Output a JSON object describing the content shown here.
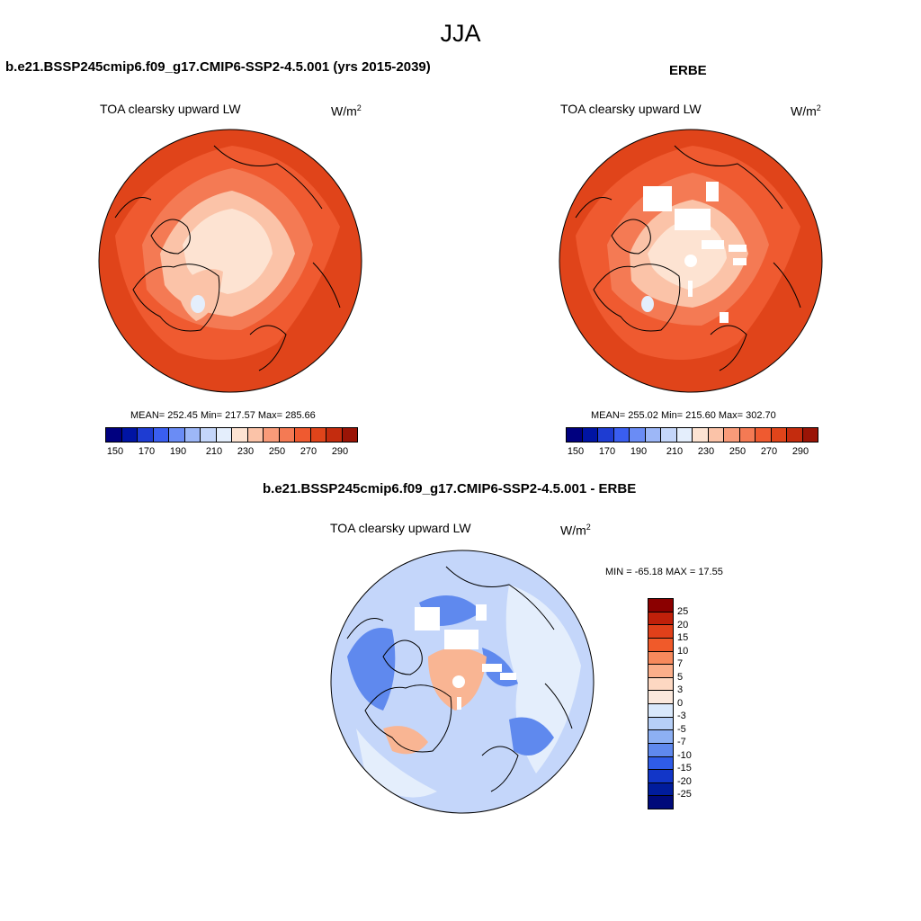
{
  "page_title": "JJA",
  "units_base": "W/m",
  "units_exp": "2",
  "panels": {
    "model": {
      "title": "b.e21.BSSP245cmip6.f09_g17.CMIP6-SSP2-4.5.001 (yrs 2015-2039)",
      "variable": "TOA clearsky upward LW",
      "stats": "MEAN= 252.45  Min= 217.57  Max= 285.66"
    },
    "obs": {
      "title": "ERBE",
      "variable": "TOA clearsky upward LW",
      "stats": "MEAN= 255.02  Min= 215.60  Max= 302.70"
    },
    "diff": {
      "title": "b.e21.BSSP245cmip6.f09_g17.CMIP6-SSP2-4.5.001 - ERBE",
      "variable": "TOA clearsky upward LW",
      "stats": "MIN = -65.18 MAX =  17.55"
    }
  },
  "abs_colorbar": {
    "colors": [
      "#00007f",
      "#0014a3",
      "#1e3cd2",
      "#3a5ef0",
      "#6a8cf5",
      "#9db7f7",
      "#c4d6fa",
      "#e4eefc",
      "#fde3d2",
      "#fbc3a8",
      "#f99b79",
      "#f47a54",
      "#ef5a30",
      "#e0441a",
      "#c42c0e",
      "#9a1406",
      "#7a0000"
    ],
    "tick_labels": [
      "150",
      "170",
      "190",
      "210",
      "230",
      "250",
      "270",
      "290"
    ]
  },
  "diff_colorbar": {
    "colors": [
      "#8b0000",
      "#c0200a",
      "#e0401a",
      "#f05a2a",
      "#f7895c",
      "#fbae8a",
      "#fdd8c2",
      "#fbe8dc",
      "#d9e8fb",
      "#b6cff7",
      "#8db0f3",
      "#5f89ee",
      "#2f5ce8",
      "#1236c8",
      "#001c9c",
      "#000a7a"
    ],
    "tick_labels": [
      "25",
      "20",
      "15",
      "10",
      "7",
      "5",
      "3",
      "0",
      "-3",
      "-5",
      "-7",
      "-10",
      "-15",
      "-20",
      "-25"
    ]
  },
  "map_palette": {
    "abs_dark": "#e0441a",
    "abs_mid": "#ef5a30",
    "abs_light": "#f47a54",
    "abs_pale": "#fbc3a8",
    "abs_paler": "#fde3d2",
    "diff_base": "#c4d6fa",
    "diff_blue": "#5f89ee",
    "diff_pale": "#e4eefc",
    "diff_warm": "#f9b593"
  }
}
